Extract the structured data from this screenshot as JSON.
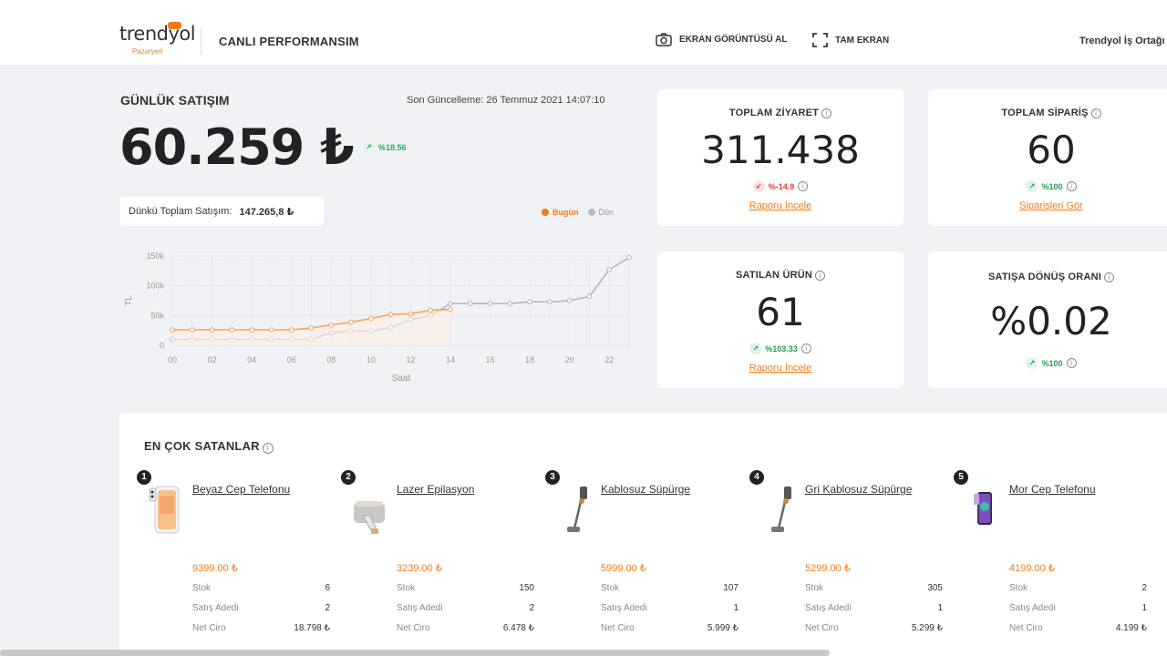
{
  "header": {
    "logo_text": "trendyol",
    "logo_sub": "Pazaryeri",
    "page_name": "CANLI PERFORMANSIM",
    "screenshot_label": "EKRAN GÖRÜNTÜSÜ AL",
    "fullscreen_label": "TAM EKRAN",
    "user_name": "Trendyol İş Ortağı"
  },
  "daily_sales": {
    "title": "GÜNLÜK SATIŞIM",
    "last_update": "Son Güncelleme: 26 Temmuz 2021 14:07:10",
    "value": "60.259 ₺",
    "change": "%18.56",
    "yesterday_label": "Dünkü Toplam Satışım:",
    "yesterday_value": "147.265,8 ₺",
    "legend_today": "Bugün",
    "legend_yesterday": "Dün"
  },
  "chart_data": {
    "type": "line",
    "ylabel": "TL",
    "xlabel": "Saat",
    "x_ticks": [
      "00",
      "02",
      "04",
      "06",
      "08",
      "10",
      "12",
      "14",
      "16",
      "18",
      "20",
      "22"
    ],
    "y_ticks": [
      "0",
      "50k",
      "100k",
      "150k"
    ],
    "ylim": [
      0,
      150000
    ],
    "xlim": [
      0,
      23
    ],
    "grid": true,
    "legend_position": "top-right",
    "series": [
      {
        "name": "Bugün",
        "color": "#f5a259",
        "x": [
          0,
          1,
          2,
          3,
          4,
          5,
          6,
          7,
          8,
          9,
          10,
          11,
          12,
          13,
          14
        ],
        "values": [
          26000,
          26000,
          26000,
          26000,
          26000,
          26000,
          26000,
          29000,
          34000,
          39000,
          45000,
          52000,
          53000,
          59000,
          60259
        ]
      },
      {
        "name": "Dün",
        "color": "#aeb3c1",
        "x": [
          0,
          1,
          2,
          3,
          4,
          5,
          6,
          7,
          8,
          9,
          10,
          11,
          12,
          13,
          14,
          15,
          16,
          17,
          18,
          19,
          20,
          21,
          22,
          23
        ],
        "values": [
          10000,
          10000,
          10000,
          10000,
          10000,
          10000,
          10000,
          10000,
          21000,
          24000,
          24000,
          30000,
          43000,
          50000,
          70000,
          70000,
          70000,
          70000,
          73000,
          73000,
          75000,
          82000,
          127000,
          147265
        ]
      }
    ]
  },
  "cards": [
    {
      "title": "TOPLAM ZİYARET",
      "value": "311.438",
      "change": "%-14.9",
      "direction": "down",
      "link": "Raporu İncele"
    },
    {
      "title": "TOPLAM SİPARİŞ",
      "value": "60",
      "change": "%100",
      "direction": "up",
      "link": "Siparişleri Gör"
    },
    {
      "title": "SATILAN ÜRÜN",
      "value": "61",
      "change": "%103.33",
      "direction": "up",
      "link": "Raporu İncele"
    },
    {
      "title": "SATIŞA DÖNÜŞ ORANI",
      "value": "%0.02",
      "change": "%100",
      "direction": "up",
      "link": ""
    }
  ],
  "best_sellers": {
    "title": "EN ÇOK SATANLAR",
    "stock_label": "Stok",
    "sales_label": "Satış Adedi",
    "revenue_label": "Net Ciro",
    "products": [
      {
        "rank": "1",
        "name": "Beyaz Cep Telefonu",
        "price": "9399.00 ₺",
        "stock": "6",
        "sales": "2",
        "revenue": "18.798 ₺",
        "image": "phone-white"
      },
      {
        "rank": "2",
        "name": "Lazer Epilasyon",
        "price": "3239.00 ₺",
        "stock": "150",
        "sales": "2",
        "revenue": "6.478 ₺",
        "image": "laser-device"
      },
      {
        "rank": "3",
        "name": "Kablosuz Süpürge",
        "price": "5999.00 ₺",
        "stock": "107",
        "sales": "1",
        "revenue": "5.999 ₺",
        "image": "stick-vacuum"
      },
      {
        "rank": "4",
        "name": "Gri Kablosuz Süpürge",
        "price": "5299.00 ₺",
        "stock": "305",
        "sales": "1",
        "revenue": "5.299 ₺",
        "image": "stick-vacuum"
      },
      {
        "rank": "5",
        "name": "Mor Cep Telefonu",
        "price": "4199.00 ₺",
        "stock": "2",
        "sales": "1",
        "revenue": "4.199 ₺",
        "image": "phone-purple"
      }
    ]
  }
}
